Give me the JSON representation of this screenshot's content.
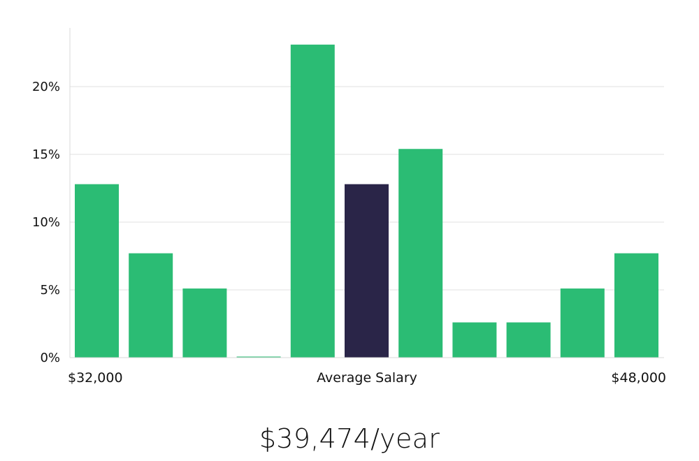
{
  "chart_data": {
    "type": "bar",
    "xlabel": "Average Salary",
    "x_range_labels": [
      "$32,000",
      "$48,000"
    ],
    "ylim": [
      0,
      24
    ],
    "yticks": [
      0,
      5,
      10,
      15,
      20
    ],
    "ytick_suffix": "%",
    "grid": true,
    "highlight_index": 5,
    "values": [
      12.8,
      7.7,
      5.1,
      0.05,
      23.1,
      12.8,
      15.4,
      2.6,
      2.6,
      5.1,
      7.7
    ]
  },
  "colors": {
    "bar": "#2bbc74",
    "highlight": "#2a2548",
    "grid": "#e2e2e2",
    "axis": "#d8d8d8"
  },
  "summary": {
    "average_salary": "$39,474/year"
  }
}
